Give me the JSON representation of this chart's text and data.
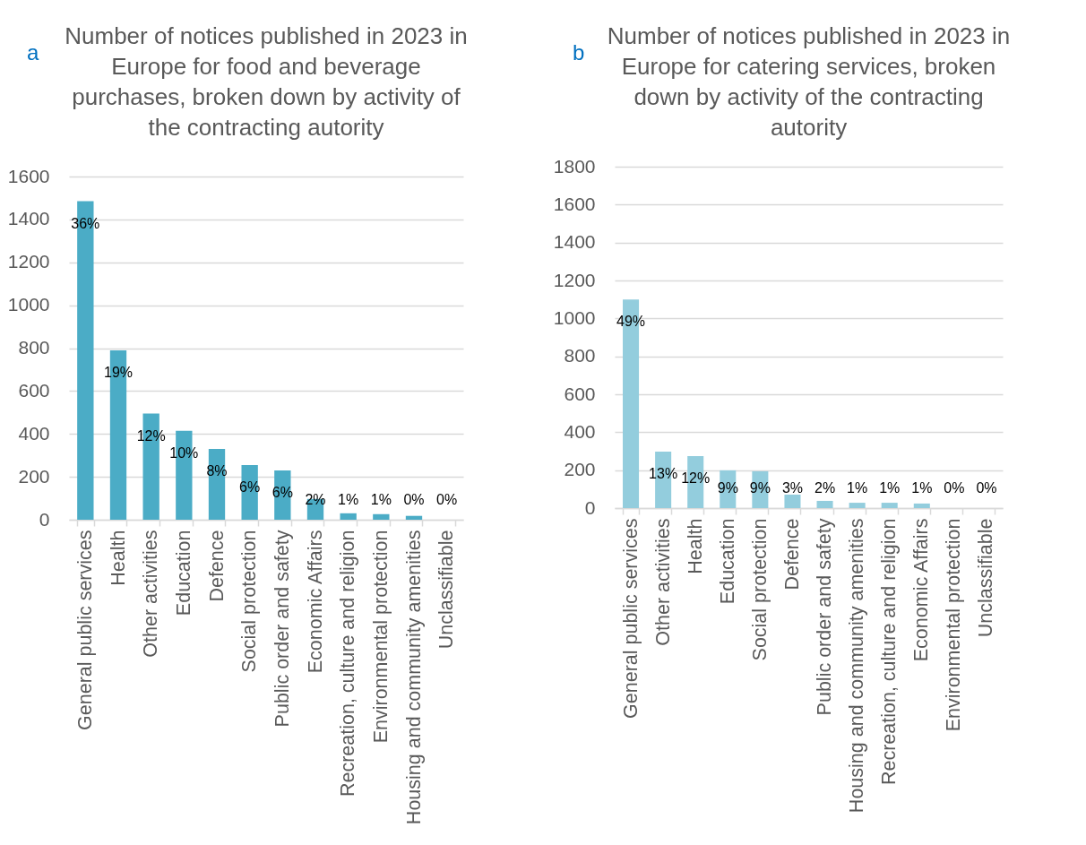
{
  "chart_data": [
    {
      "type": "bar",
      "title": "Number of notices published in 2023 in Europe for food and beverage purchases, broken down by activity of the contracting autority",
      "annotations": [
        "a",
        {
          "text": "36%",
          "x": "General public services",
          "y": 1485
        },
        {
          "text": "19%",
          "x": "Health",
          "y": 790
        },
        {
          "text": "12%",
          "x": "Other activities",
          "y": 495
        },
        {
          "text": "10%",
          "x": "Education",
          "y": 415
        },
        {
          "text": "8%",
          "x": "Defence",
          "y": 330
        },
        {
          "text": "6%",
          "x": "Social protection",
          "y": 255
        },
        {
          "text": "6%",
          "x": "Public order and safety",
          "y": 230
        },
        {
          "text": "2%",
          "x": "Economic Affairs",
          "y": 97
        },
        {
          "text": "1%",
          "x": "Recreation, culture and religion",
          "y": 30
        },
        {
          "text": "1%",
          "x": "Environmental protection",
          "y": 26
        },
        {
          "text": "0%",
          "x": "Housing and community amenities",
          "y": 18
        },
        {
          "text": "0%",
          "x": "Unclassifiable",
          "y": 0
        }
      ],
      "categories": [
        "General public services",
        "Health",
        "Other activities",
        "Education",
        "Defence",
        "Social protection",
        "Public order and safety",
        "Economic Affairs",
        "Recreation, culture and religion",
        "Environmental protection",
        "Housing and community amenities",
        "Unclassifiable"
      ],
      "values": [
        1485,
        790,
        495,
        415,
        330,
        255,
        230,
        97,
        30,
        26,
        18,
        0
      ],
      "color": "#4bacc6",
      "ylim": [
        0,
        1600
      ],
      "yticks": [
        0,
        200,
        400,
        600,
        800,
        1000,
        1200,
        1400,
        1600
      ],
      "grid": "y"
    },
    {
      "type": "bar",
      "title": "Number of notices published in 2023 in Europe for catering services, broken down by activity of the contracting autority",
      "annotations": [
        "b",
        {
          "text": "49%",
          "x": "General public services",
          "y": 1100
        },
        {
          "text": "13%",
          "x": "Other activities",
          "y": 298
        },
        {
          "text": "12%",
          "x": "Health",
          "y": 274
        },
        {
          "text": "9%",
          "x": "Education",
          "y": 199
        },
        {
          "text": "9%",
          "x": "Social protection",
          "y": 194
        },
        {
          "text": "3%",
          "x": "Defence",
          "y": 71
        },
        {
          "text": "2%",
          "x": "Public order and safety",
          "y": 38
        },
        {
          "text": "1%",
          "x": "Housing and community amenities",
          "y": 28
        },
        {
          "text": "1%",
          "x": "Recreation, culture and religion",
          "y": 28
        },
        {
          "text": "1%",
          "x": "Economic Affairs",
          "y": 24
        },
        {
          "text": "0%",
          "x": "Environmental protection",
          "y": 0
        },
        {
          "text": "0%",
          "x": "Unclassifiable",
          "y": 0
        }
      ],
      "categories": [
        "General public services",
        "Other activities",
        "Health",
        "Education",
        "Social protection",
        "Defence",
        "Public order and safety",
        "Housing and community amenities",
        "Recreation, culture and religion",
        "Economic Affairs",
        "Environmental protection",
        "Unclassifiable"
      ],
      "values": [
        1100,
        298,
        274,
        199,
        194,
        71,
        38,
        28,
        28,
        24,
        0,
        0
      ],
      "color": "#93cddd",
      "ylim": [
        0,
        1800
      ],
      "yticks": [
        0,
        200,
        400,
        600,
        800,
        1000,
        1200,
        1400,
        1600,
        1800
      ],
      "grid": "y"
    }
  ]
}
